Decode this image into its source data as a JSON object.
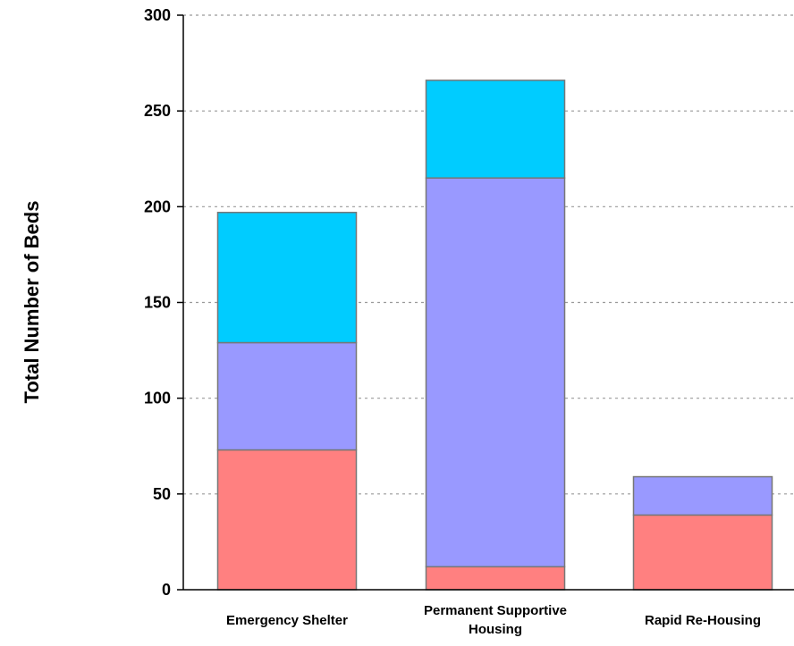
{
  "chart_data": {
    "type": "bar",
    "stacked": true,
    "ylabel": "Total Number of Beds",
    "xlabel": "",
    "ylim": [
      0,
      300
    ],
    "yticks": [
      0,
      50,
      100,
      150,
      200,
      250,
      300
    ],
    "grid": true,
    "categories": [
      [
        "Emergency Shelter"
      ],
      [
        "Permanent Supportive",
        "Housing"
      ],
      [
        "Rapid Re-Housing"
      ]
    ],
    "series": [
      {
        "color": "#FF8080",
        "values": [
          73,
          12,
          39
        ]
      },
      {
        "color": "#9999FF",
        "values": [
          56,
          203,
          20
        ]
      },
      {
        "color": "#00CCFF",
        "values": [
          68,
          51,
          0
        ]
      }
    ]
  }
}
